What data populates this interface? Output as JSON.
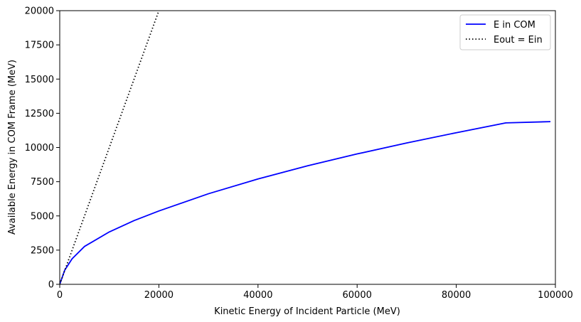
{
  "chart_data": {
    "type": "line",
    "title": "",
    "xlabel": "Kinetic Energy of Incident Particle (MeV)",
    "ylabel": "Available Energy in COM Frame (MeV)",
    "xlim": [
      0,
      100000
    ],
    "ylim": [
      0,
      20000
    ],
    "x_ticks": [
      0,
      20000,
      40000,
      60000,
      80000,
      100000
    ],
    "y_ticks": [
      0,
      2500,
      5000,
      7500,
      10000,
      12500,
      15000,
      17500,
      20000
    ],
    "grid": false,
    "legend_position": "top-right",
    "series": [
      {
        "name": "E in COM",
        "color": "#0000ff",
        "style": "solid",
        "x": [
          0,
          1000,
          2500,
          5000,
          10000,
          15000,
          20000,
          30000,
          40000,
          50000,
          60000,
          70000,
          80000,
          90000,
          99000
        ],
        "y": [
          0,
          1030,
          1870,
          2770,
          3830,
          4660,
          5360,
          6620,
          7700,
          8660,
          9530,
          10330,
          11080,
          11800,
          11890
        ]
      },
      {
        "name": "Eout = Ein",
        "color": "#000000",
        "style": "dotted",
        "x": [
          0,
          20000
        ],
        "y": [
          0,
          20000
        ]
      }
    ]
  }
}
